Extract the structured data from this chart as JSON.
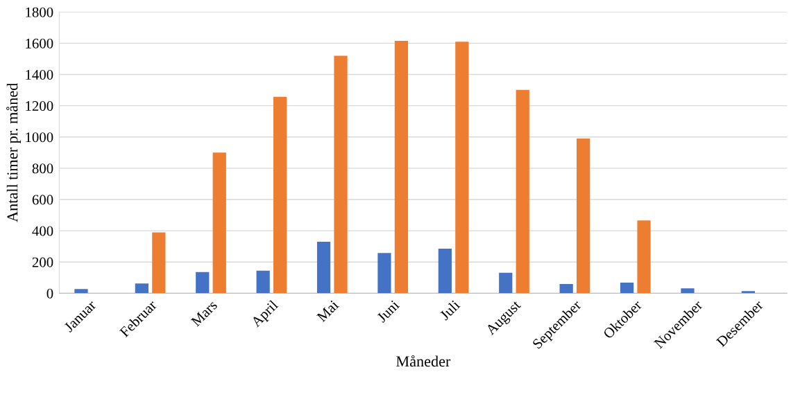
{
  "chart_data": {
    "type": "bar",
    "xlabel": "Måneder",
    "ylabel": "Antall timer pr. måned",
    "categories": [
      "Januar",
      "Februar",
      "Mars",
      "April",
      "Mai",
      "Juni",
      "Juli",
      "August",
      "September",
      "Oktober",
      "November",
      "Desember"
    ],
    "series": [
      {
        "color": "#4472c4",
        "values": [
          27,
          63,
          136,
          145,
          330,
          258,
          285,
          131,
          59,
          68,
          32,
          14
        ]
      },
      {
        "color": "#ed7d31",
        "values": [
          0,
          389,
          900,
          1257,
          1520,
          1615,
          1610,
          1302,
          990,
          466,
          0,
          0
        ]
      }
    ],
    "ylim": [
      0,
      1800
    ],
    "yticks": [
      0,
      200,
      400,
      600,
      800,
      1000,
      1200,
      1400,
      1600,
      1800
    ],
    "grid": "y",
    "legend": false
  }
}
